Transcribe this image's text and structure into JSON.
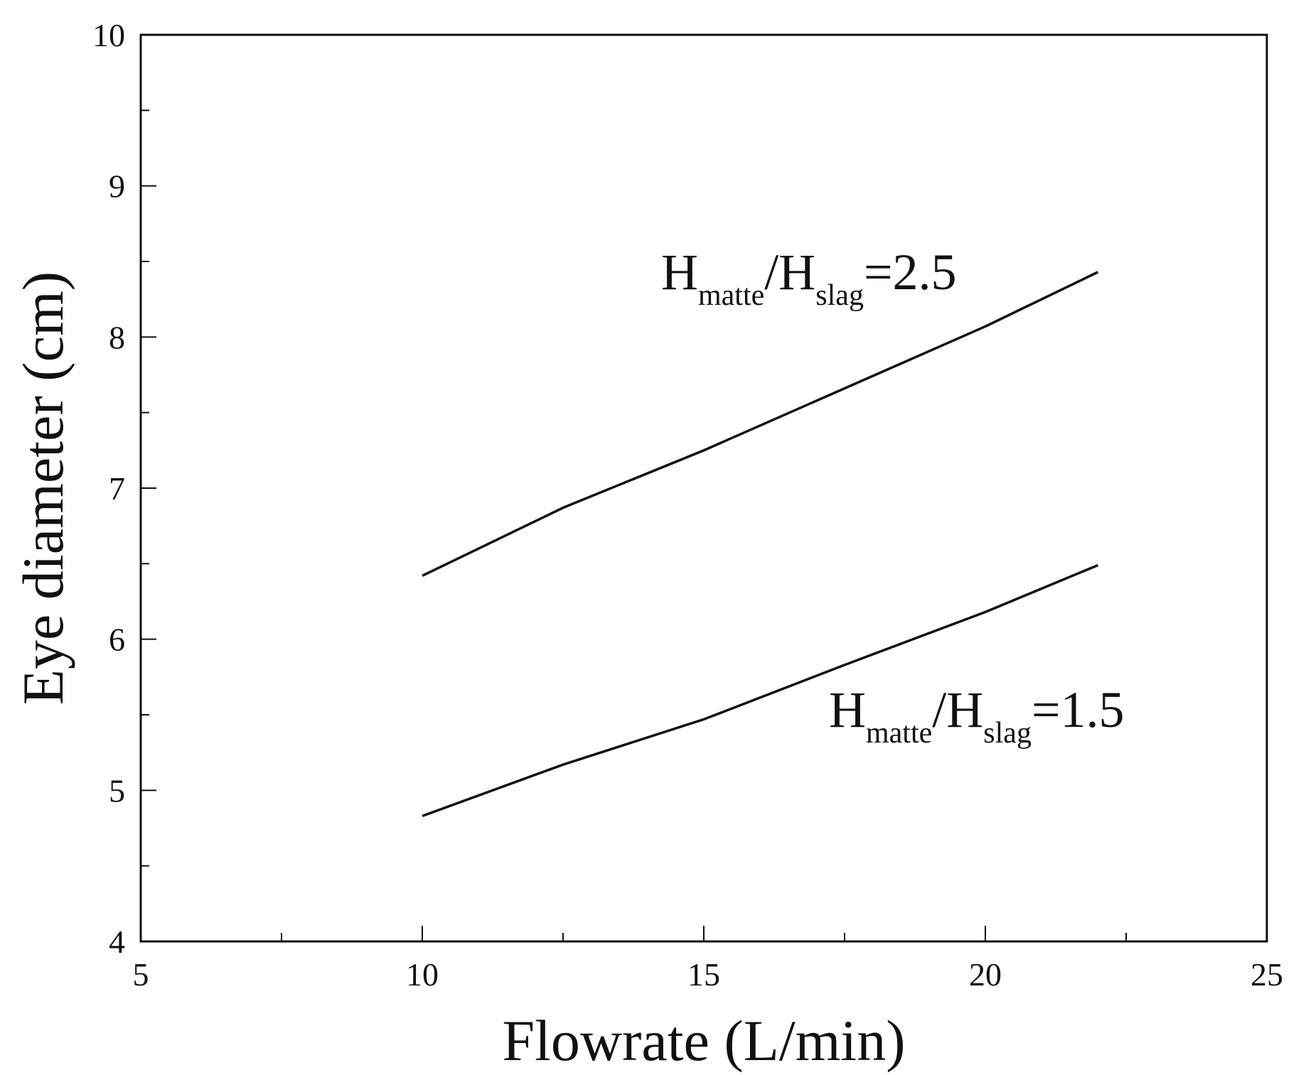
{
  "chart_data": {
    "type": "line",
    "xlabel": "Flowrate (L/min)",
    "ylabel": "Eye diameter  (cm)",
    "series": [
      {
        "name": "H_matte/H_slag=2.5",
        "color": "#111111",
        "x": [
          10,
          12.5,
          15,
          17.5,
          20,
          22
        ],
        "values": [
          6.42,
          6.87,
          7.25,
          7.66,
          8.07,
          8.43
        ]
      },
      {
        "name": "H_matte/H_slag=1.5",
        "color": "#111111",
        "x": [
          10,
          12.5,
          15,
          17.5,
          20,
          22
        ],
        "values": [
          4.83,
          5.17,
          5.47,
          5.83,
          6.18,
          6.49
        ]
      }
    ],
    "annotations": [
      {
        "parts": [
          "H",
          "matte",
          "/H",
          "slag",
          "=2.5"
        ]
      },
      {
        "parts": [
          "H",
          "matte",
          "/H",
          "slag",
          "=1.5"
        ]
      }
    ],
    "xlim": [
      5,
      25
    ],
    "xticks": [
      5,
      10,
      15,
      20,
      25
    ],
    "xminorticks": [
      7.5,
      12.5,
      17.5,
      22.5
    ],
    "ylim": [
      4,
      10
    ],
    "yticks": [
      4,
      5,
      6,
      7,
      8,
      9,
      10
    ],
    "yminorticks": [
      4.5,
      5.5,
      6.5,
      7.5,
      8.5,
      9.5
    ]
  }
}
